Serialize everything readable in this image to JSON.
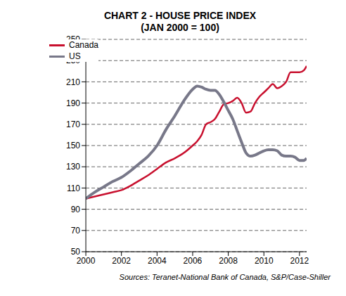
{
  "chart_data": {
    "type": "line",
    "title": "CHART 2 - HOUSE PRICE INDEX",
    "subtitle": "(JAN 2000 = 100)",
    "source": "Sources: Teranet-National Bank of Canada, S&P/Case-Shiller",
    "x": [
      2000,
      2000.5,
      2001,
      2001.5,
      2002,
      2002.5,
      2003,
      2003.5,
      2004,
      2004.5,
      2005,
      2005.5,
      2006,
      2006.25,
      2006.5,
      2006.75,
      2007,
      2007.25,
      2007.5,
      2007.75,
      2008,
      2008.25,
      2008.5,
      2008.75,
      2009,
      2009.25,
      2009.5,
      2009.75,
      2010,
      2010.25,
      2010.5,
      2010.75,
      2011,
      2011.25,
      2011.5,
      2011.75,
      2012,
      2012.25,
      2012.4
    ],
    "series": [
      {
        "name": "Canada",
        "color": "#c8102e",
        "values": [
          100,
          102,
          104,
          106,
          108,
          112,
          117,
          122,
          128,
          134,
          138,
          143,
          150,
          154,
          160,
          170,
          172,
          175,
          182,
          189,
          190,
          192,
          195,
          190,
          181,
          182,
          190,
          196,
          200,
          204,
          208,
          204,
          206,
          210,
          219,
          219,
          219,
          221,
          225
        ]
      },
      {
        "name": "US",
        "color": "#787889",
        "values": [
          100,
          106,
          111,
          116,
          120,
          126,
          133,
          140,
          150,
          165,
          178,
          192,
          203,
          206,
          205,
          203,
          202,
          202,
          198,
          191,
          183,
          175,
          164,
          153,
          143,
          140,
          141,
          143,
          145,
          146,
          146,
          145,
          141,
          140,
          140,
          139,
          136,
          136,
          138
        ]
      }
    ],
    "xlim": [
      2000,
      2012.4
    ],
    "xticks": [
      2000,
      2002,
      2004,
      2006,
      2008,
      2010,
      2012
    ],
    "ylim": [
      50,
      250
    ],
    "yticks": [
      50,
      70,
      90,
      110,
      130,
      150,
      170,
      190,
      210,
      230,
      250
    ],
    "grid": true,
    "legend": "upper left"
  }
}
